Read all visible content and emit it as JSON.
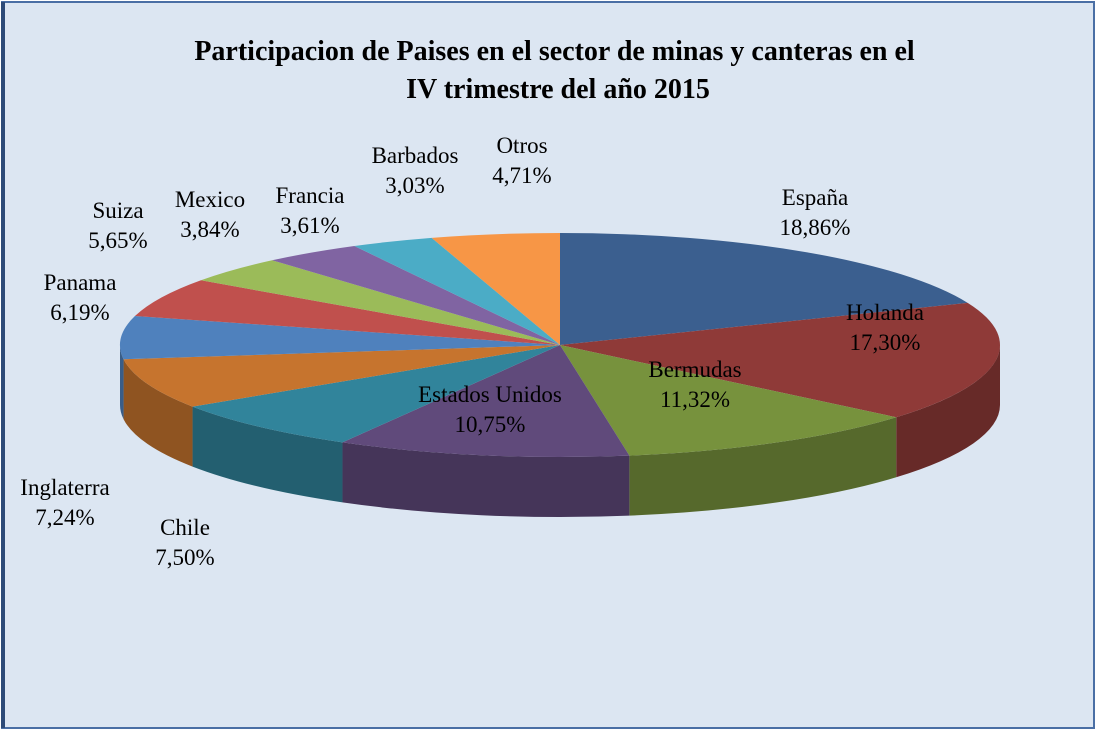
{
  "chart_data": {
    "type": "pie",
    "title": "Participacion de Paises en el sector de minas y canteras  en el IV trimestre del año 2015",
    "categories": [
      "España",
      "Holanda",
      "Bermudas",
      "Estados Unidos",
      "Chile",
      "Inglaterra",
      "Panama",
      "Suiza",
      "Mexico",
      "Francia",
      "Barbados",
      "Otros"
    ],
    "values": [
      18.86,
      17.3,
      11.32,
      10.75,
      7.5,
      7.24,
      6.19,
      5.65,
      3.84,
      3.61,
      3.03,
      4.71
    ],
    "value_labels": [
      "18,86%",
      "17,30%",
      "11,32%",
      "10,75%",
      "7,50%",
      "7,24%",
      "6,19%",
      "5,65%",
      "3,84%",
      "3,61%",
      "3,03%",
      "4,71%"
    ],
    "colors": [
      "#3b5f8f",
      "#8f3a38",
      "#77923d",
      "#604a7b",
      "#31849b",
      "#c6742e",
      "#4f81bd",
      "#c0504d",
      "#9bbb59",
      "#8064a2",
      "#4bacc6",
      "#f79646"
    ]
  }
}
